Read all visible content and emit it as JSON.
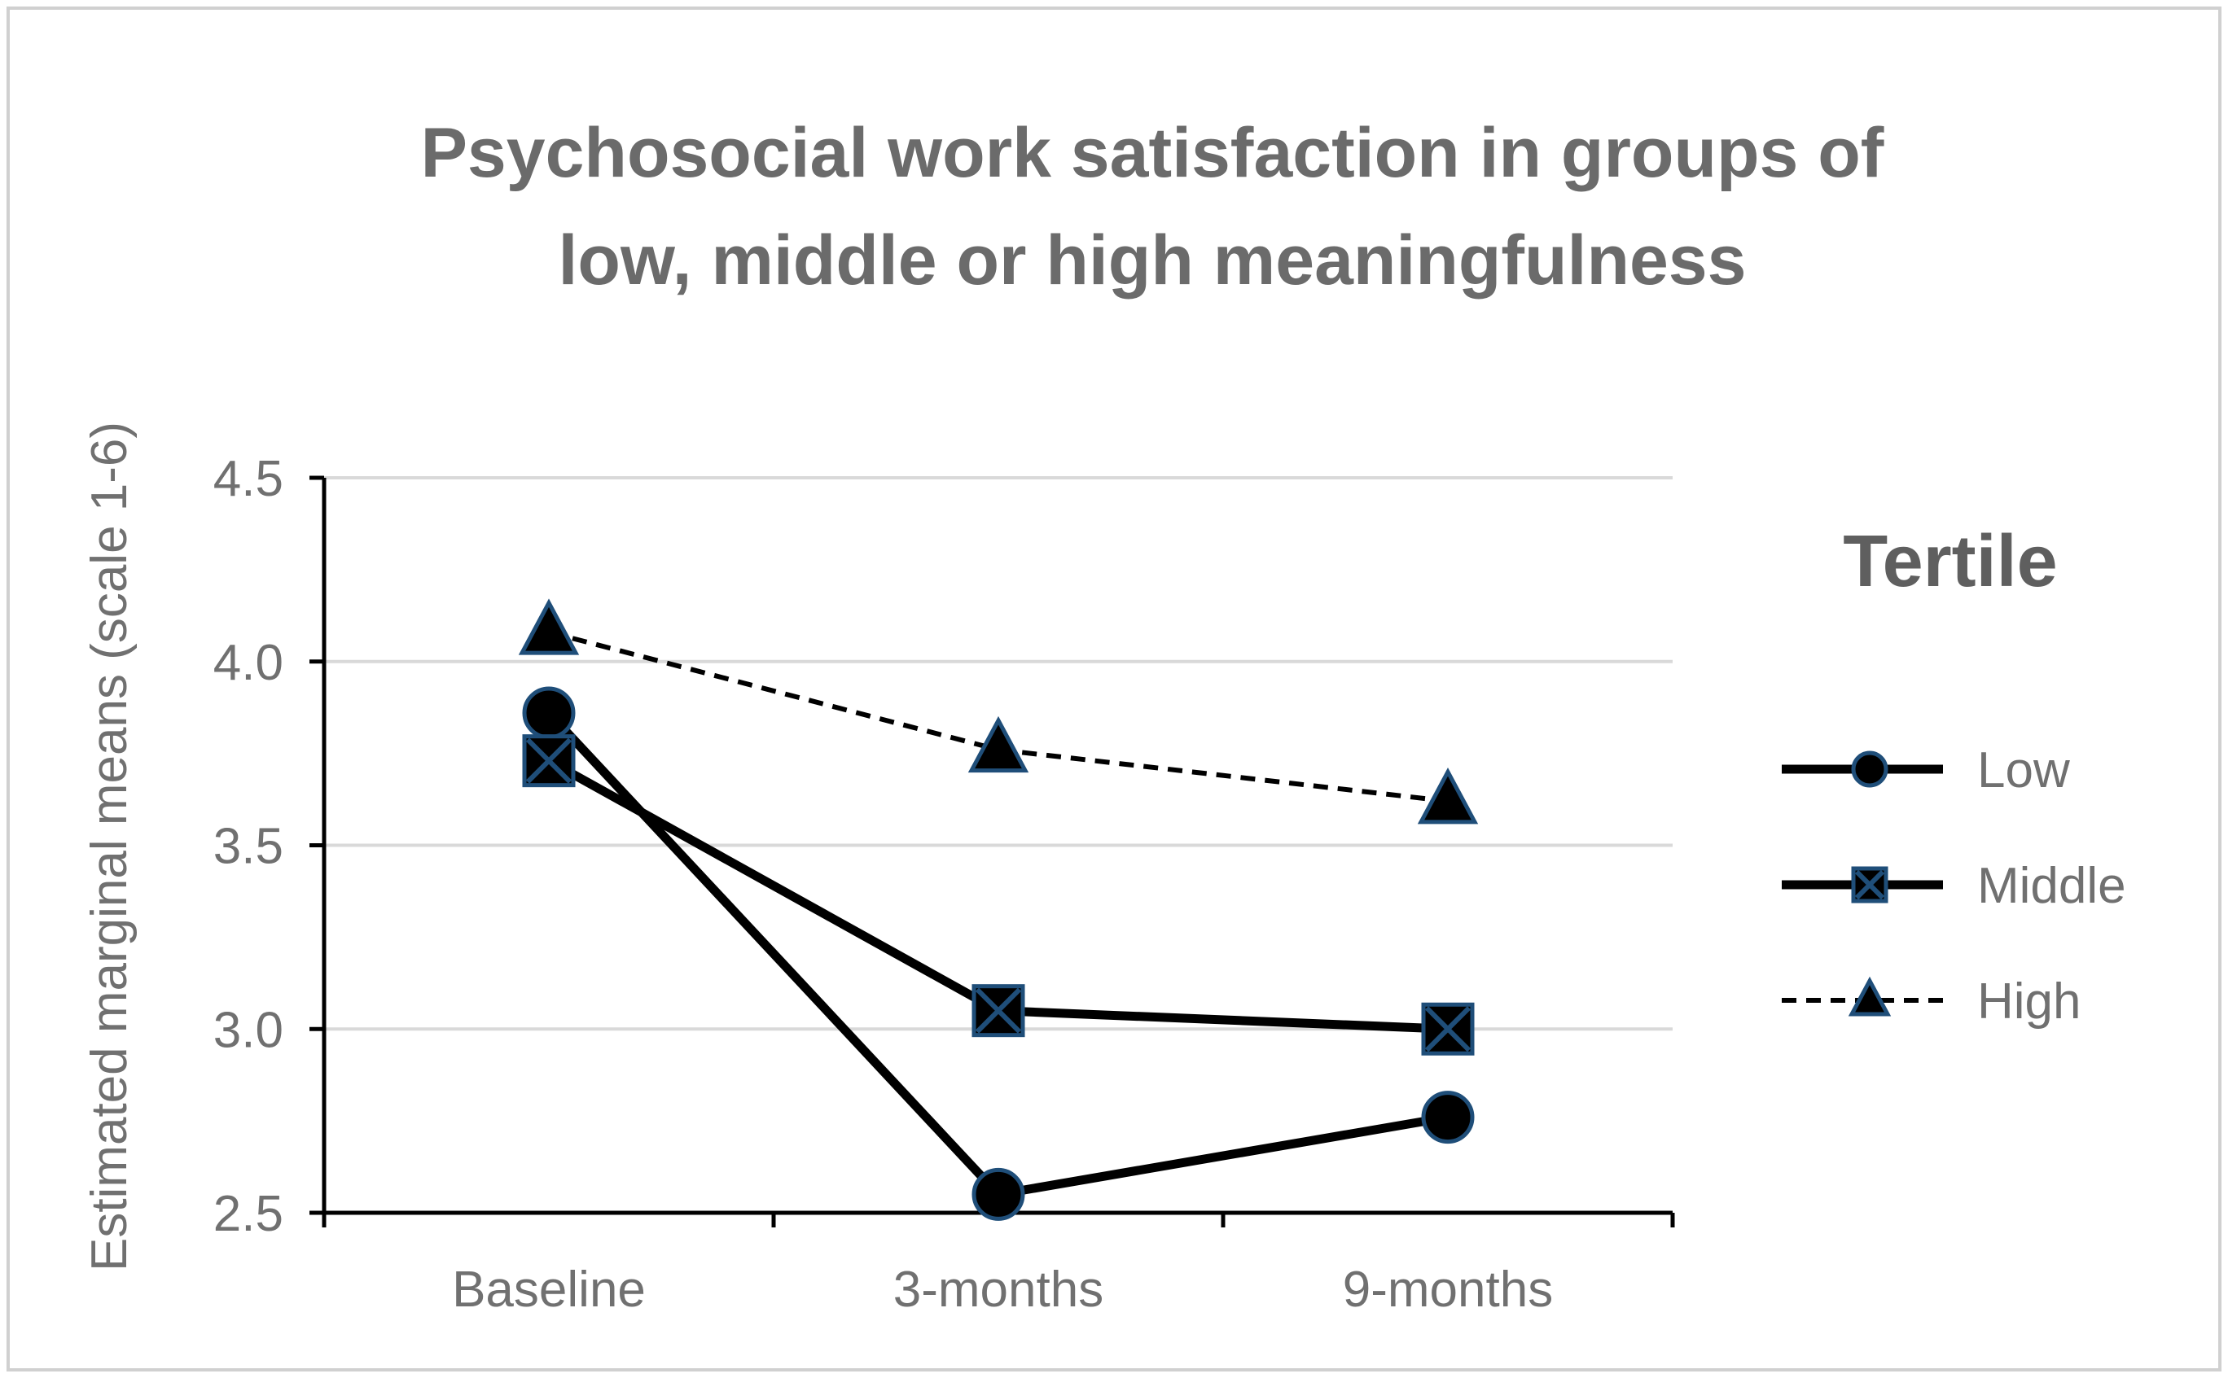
{
  "chart_data": {
    "type": "line",
    "title_lines": [
      "Psychosocial work satisfaction in groups of",
      "low, middle or high meaningfulness"
    ],
    "xlabel": "",
    "ylabel": "Estimated marginal means (scale 1-6)",
    "categories": [
      "Baseline",
      "3-months",
      "9-months"
    ],
    "ylim": [
      2.5,
      4.5
    ],
    "yticks": [
      {
        "value": 2.5,
        "label": "2.5"
      },
      {
        "value": 3.0,
        "label": "3.0"
      },
      {
        "value": 3.5,
        "label": "3.5"
      },
      {
        "value": 4.0,
        "label": "4.0"
      },
      {
        "value": 4.5,
        "label": "4.5"
      }
    ],
    "grid": true,
    "legend": {
      "title": "Tertile",
      "placement": "right"
    },
    "series": [
      {
        "name": "Low",
        "values": [
          3.86,
          2.55,
          2.76
        ],
        "marker": "circle",
        "line_style": "solid"
      },
      {
        "name": "Middle",
        "values": [
          3.73,
          3.05,
          3.0
        ],
        "marker": "x-square",
        "line_style": "solid"
      },
      {
        "name": "High",
        "values": [
          4.08,
          3.76,
          3.62
        ],
        "marker": "triangle",
        "line_style": "dashed"
      }
    ],
    "colors": {
      "line": "#000000",
      "marker_fill": "#000000",
      "marker_edge": "#1f4e79",
      "grid": "#d9d9d9",
      "axis": "#000000",
      "frame_border": "#d0d0d0"
    }
  }
}
